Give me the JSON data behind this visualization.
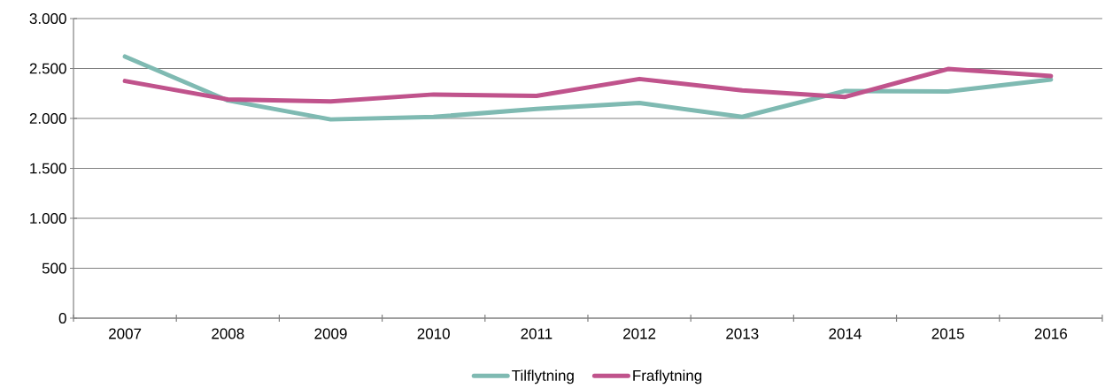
{
  "chart_data": {
    "type": "line",
    "categories": [
      "2007",
      "2008",
      "2009",
      "2010",
      "2011",
      "2012",
      "2013",
      "2014",
      "2015",
      "2016"
    ],
    "series": [
      {
        "name": "Tilflytning",
        "color": "#7fbab2",
        "values": [
          2620,
          2180,
          1990,
          2015,
          2095,
          2155,
          2015,
          2275,
          2270,
          2390
        ]
      },
      {
        "name": "Fraflytning",
        "color": "#c0538c",
        "values": [
          2375,
          2190,
          2170,
          2240,
          2225,
          2395,
          2280,
          2215,
          2495,
          2425
        ]
      }
    ],
    "ylim": [
      0,
      3000
    ],
    "yticks": [
      0,
      500,
      {
        "value": 1000,
        "label": "1.000"
      },
      {
        "value": 1500,
        "label": "1.500"
      },
      {
        "value": 2000,
        "label": "2.000"
      },
      {
        "value": 2500,
        "label": "2.500"
      },
      {
        "value": 3000,
        "label": "3.000"
      }
    ],
    "grid": "y",
    "legend": "bottom",
    "marker": "none",
    "line_style": "solid"
  }
}
